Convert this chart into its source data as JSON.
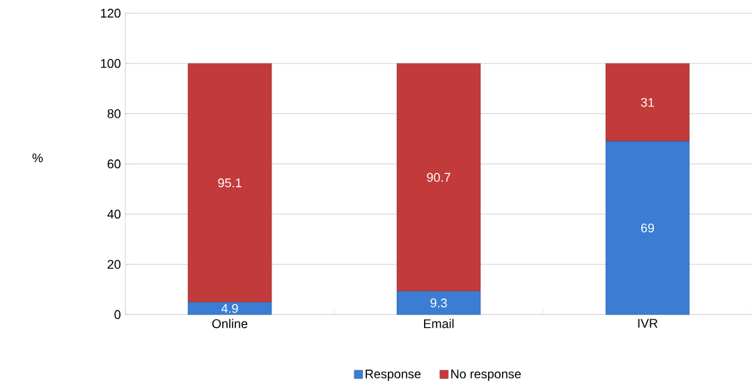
{
  "chart_data": {
    "type": "bar",
    "stacked": true,
    "ylabel": "%",
    "categories": [
      "Online",
      "Email",
      "IVR"
    ],
    "series": [
      {
        "name": "Response",
        "color": "#3a7dd2",
        "values": [
          4.9,
          9.3,
          69
        ]
      },
      {
        "name": "No response",
        "color": "#c23a3a",
        "values": [
          95.1,
          90.7,
          31
        ]
      }
    ],
    "ylim": [
      0,
      120
    ],
    "yticks": [
      0,
      20,
      40,
      60,
      80,
      100,
      120
    ],
    "grid": "y",
    "legend": "bottom",
    "data_labels": true
  }
}
